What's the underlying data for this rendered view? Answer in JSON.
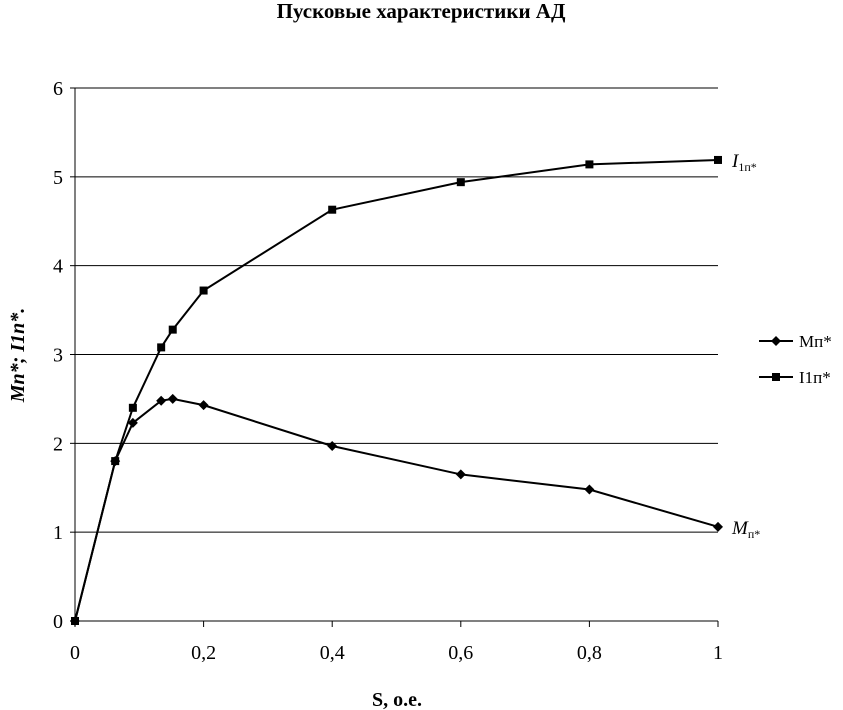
{
  "chart_data": {
    "type": "line",
    "title": "Пусковые характеристики АД",
    "xlabel": "S, о.е.",
    "ylabel": "Mп*; I1п*.",
    "xlim": [
      0,
      1
    ],
    "ylim": [
      0,
      6
    ],
    "x_ticks": [
      "0",
      "0,2",
      "0,4",
      "0,6",
      "0,8",
      "1"
    ],
    "y_ticks": [
      "0",
      "1",
      "2",
      "3",
      "4",
      "5",
      "6"
    ],
    "grid": "horizontal",
    "legend_position": "right",
    "series": [
      {
        "name": "Мп*",
        "marker": "diamond",
        "color": "#000000",
        "x": [
          0,
          0.0625,
          0.09,
          0.134,
          0.152,
          0.2,
          0.4,
          0.6,
          0.8,
          1
        ],
        "y": [
          0,
          1.8,
          2.23,
          2.48,
          2.5,
          2.43,
          1.97,
          1.65,
          1.48,
          1.06
        ]
      },
      {
        "name": "I1п*",
        "marker": "square",
        "color": "#000000",
        "x": [
          0,
          0.0625,
          0.09,
          0.134,
          0.152,
          0.2,
          0.4,
          0.6,
          0.8,
          1
        ],
        "y": [
          0,
          1.8,
          2.4,
          3.08,
          3.28,
          3.72,
          4.63,
          4.94,
          5.14,
          5.19
        ]
      }
    ],
    "annotations": [
      {
        "text": "I",
        "sub": "1п*",
        "series": 1
      },
      {
        "text": "M",
        "sub": "п*",
        "series": 0
      }
    ]
  }
}
